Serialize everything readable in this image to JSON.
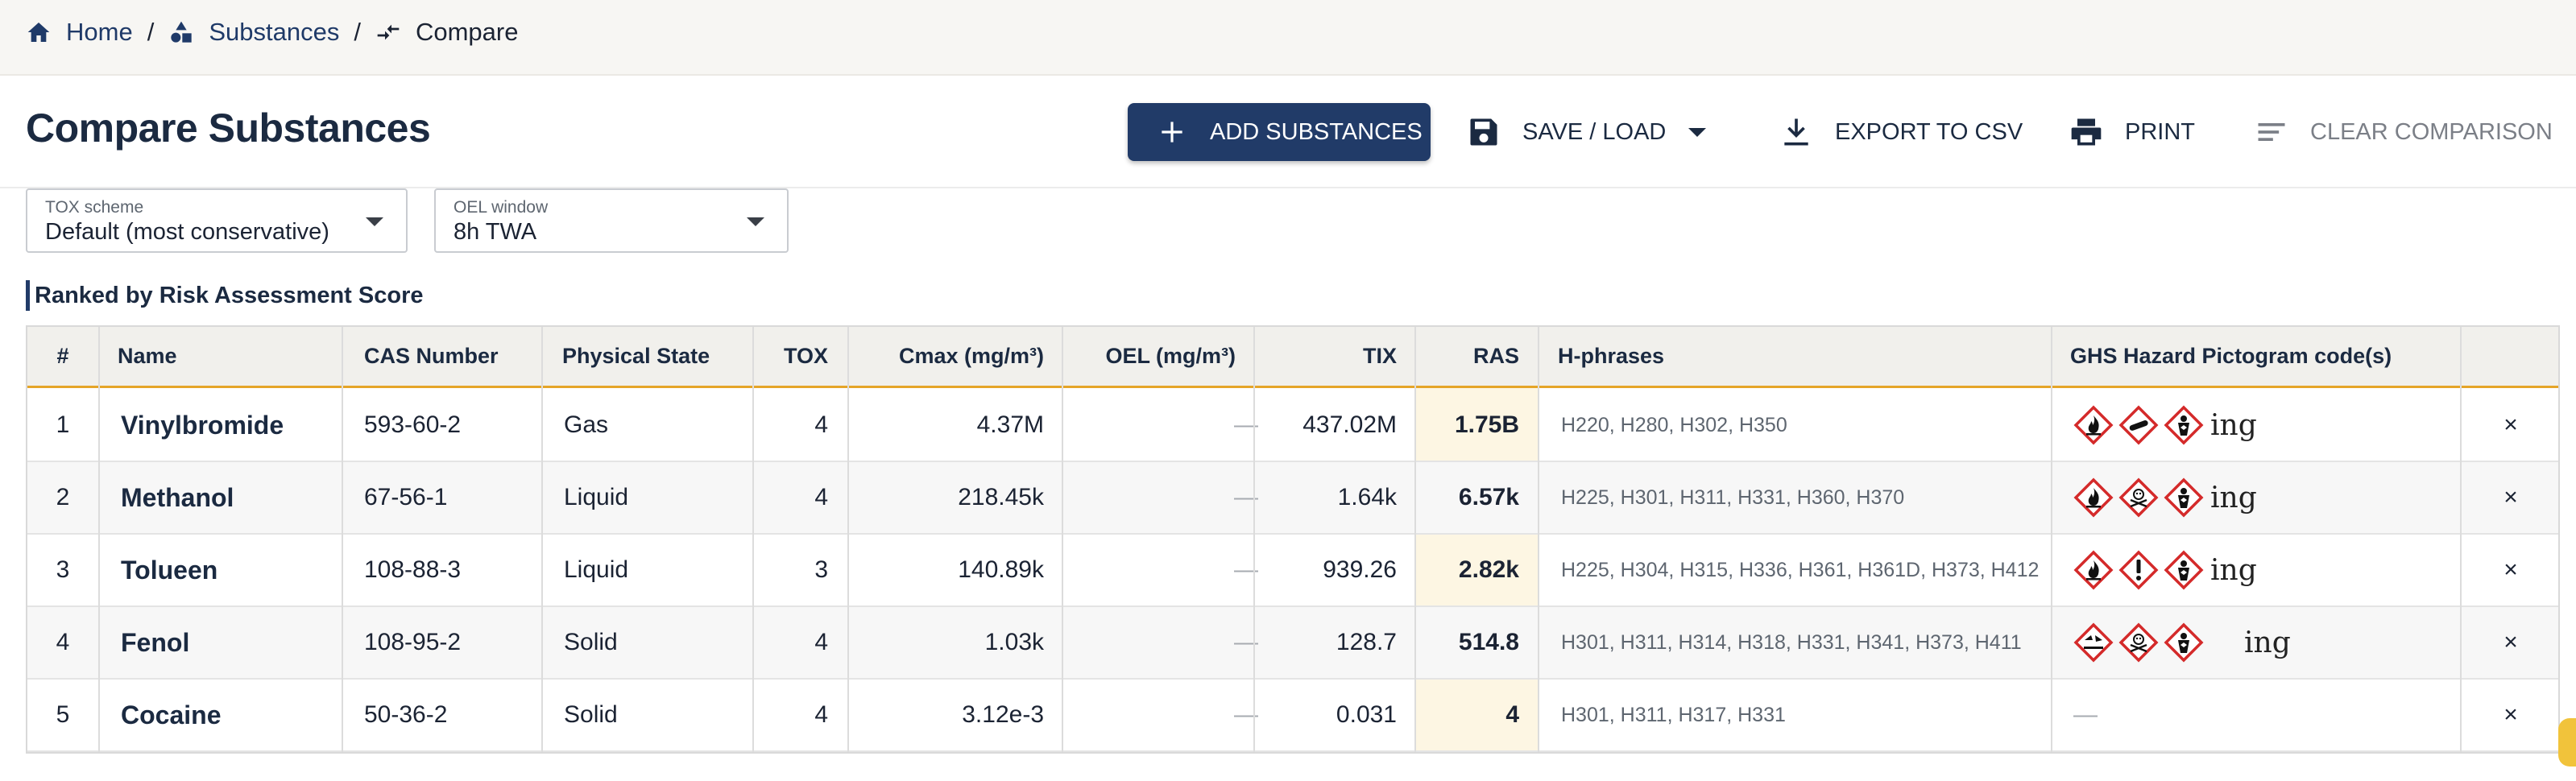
{
  "breadcrumb": {
    "items": [
      {
        "label": "Home",
        "icon": "home-icon"
      },
      {
        "label": "Substances",
        "icon": "shapes-icon"
      },
      {
        "label": "Compare",
        "icon": "compare-arrows-icon"
      }
    ],
    "separator": "/"
  },
  "page": {
    "title": "Compare Substances"
  },
  "toolbar": {
    "add_label": "ADD SUBSTANCES",
    "save_label": "SAVE / LOAD",
    "export_label": "EXPORT TO CSV",
    "print_label": "PRINT",
    "clear_label": "CLEAR COMPARISON"
  },
  "filters": {
    "tox_scheme": {
      "label": "TOX scheme",
      "value": "Default (most conservative)"
    },
    "oel_window": {
      "label": "OEL window",
      "value": "8h TWA"
    }
  },
  "section_title": "Ranked by Risk Assessment Score",
  "table": {
    "columns": [
      "#",
      "Name",
      "CAS Number",
      "Physical State",
      "TOX",
      "Cmax (mg/m³)",
      "OEL (mg/m³)",
      "TIX",
      "RAS",
      "H-phrases",
      "GHS Hazard Pictogram code(s)"
    ],
    "rows": [
      {
        "rank": "1",
        "name": "Vinylbromide",
        "cas": "593-60-2",
        "state": "Gas",
        "tox": "4",
        "cmax": "4.37M",
        "oel": "—",
        "tix": "437.02M",
        "ras": "1.75B",
        "hphrases": "H220, H280, H302, H350",
        "pictograms": [
          "flame",
          "gas-cylinder",
          "health-hazard"
        ],
        "extra": "ing"
      },
      {
        "rank": "2",
        "name": "Methanol",
        "cas": "67-56-1",
        "state": "Liquid",
        "tox": "4",
        "cmax": "218.45k",
        "oel": "—",
        "tix": "1.64k",
        "ras": "6.57k",
        "hphrases": "H225, H301, H311, H331, H360, H370",
        "pictograms": [
          "flame",
          "skull",
          "health-hazard"
        ],
        "extra": "ing"
      },
      {
        "rank": "3",
        "name": "Tolueen",
        "cas": "108-88-3",
        "state": "Liquid",
        "tox": "3",
        "cmax": "140.89k",
        "oel": "—",
        "tix": "939.26",
        "ras": "2.82k",
        "hphrases": "H225, H304, H315, H336, H361, H361D, H373, H412",
        "pictograms": [
          "flame",
          "exclamation",
          "health-hazard"
        ],
        "extra": "ing"
      },
      {
        "rank": "4",
        "name": "Fenol",
        "cas": "108-95-2",
        "state": "Solid",
        "tox": "4",
        "cmax": "1.03k",
        "oel": "—",
        "tix": "128.7",
        "ras": "514.8",
        "hphrases": "H301, H311, H314, H318, H331, H341, H373, H411",
        "pictograms": [
          "corrosion",
          "skull",
          "health-hazard"
        ],
        "extra": "ing"
      },
      {
        "rank": "5",
        "name": "Cocaine",
        "cas": "50-36-2",
        "state": "Solid",
        "tox": "4",
        "cmax": "3.12e-3",
        "oel": "—",
        "tix": "0.031",
        "ras": "4",
        "hphrases": "H301, H311, H317, H331",
        "pictograms": [],
        "pict_empty": "—"
      }
    ],
    "remove_icon": "×"
  },
  "colors": {
    "primary": "#213b68",
    "accent_rule": "#e5a528",
    "ras_highlight": "#fdf6e3",
    "remove": "#d43a3a"
  }
}
